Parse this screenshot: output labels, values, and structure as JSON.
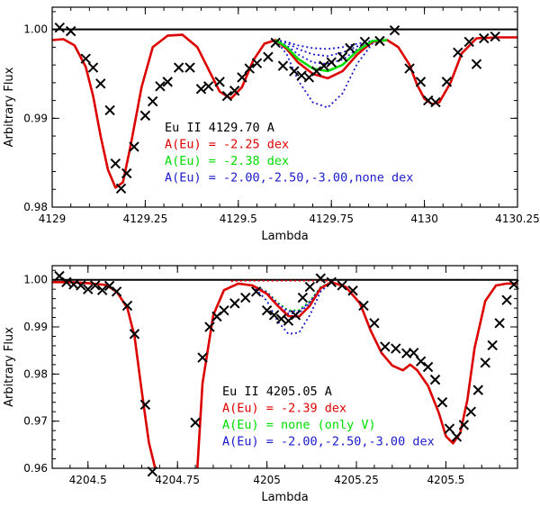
{
  "colors": {
    "red": "#dd0000",
    "green": "#00dd00",
    "blue": "#1a1acc",
    "black": "#000000"
  },
  "chart_data": [
    {
      "type": "line",
      "title": "Eu II 4129.70 A",
      "xlabel": "Lambda",
      "ylabel": "Arbitrary Flux",
      "xlim": [
        4129.0,
        4130.25
      ],
      "ylim": [
        0.98,
        1.0025
      ],
      "xticks": [
        4129,
        4129.25,
        4129.5,
        4129.75,
        4130,
        4130.25
      ],
      "xtick_labels": [
        "4129",
        "4129.25",
        "4129.5",
        "4129.75",
        "4130",
        "4130.25"
      ],
      "yticks": [
        0.98,
        0.99,
        1.0
      ],
      "ytick_labels": [
        "0.98",
        "0.99",
        "1.00"
      ],
      "continuum": 1.0,
      "annotations": [
        {
          "text": "Eu II 4129.70 A",
          "color": "black"
        },
        {
          "text": "A(Eu) = -2.25 dex",
          "color": "red"
        },
        {
          "text": "A(Eu) = -2.38 dex",
          "color": "green"
        },
        {
          "text": "A(Eu) = -2.00,-2.50,-3.00,none dex",
          "color": "blue"
        }
      ],
      "observed": {
        "name": "observed",
        "x": [
          4129.02,
          4129.05,
          4129.09,
          4129.11,
          4129.13,
          4129.155,
          4129.17,
          4129.185,
          4129.2,
          4129.22,
          4129.25,
          4129.27,
          4129.29,
          4129.31,
          4129.34,
          4129.37,
          4129.4,
          4129.42,
          4129.45,
          4129.47,
          4129.49,
          4129.51,
          4129.53,
          4129.55,
          4129.58,
          4129.6,
          4129.62,
          4129.65,
          4129.67,
          4129.69,
          4129.71,
          4129.73,
          4129.75,
          4129.78,
          4129.8,
          4129.84,
          4129.88,
          4129.92,
          4129.96,
          4129.99,
          4130.01,
          4130.03,
          4130.06,
          4130.09,
          4130.12,
          4130.14,
          4130.16,
          4130.19
        ],
        "y": [
          1.0002,
          0.9998,
          0.9967,
          0.9957,
          0.9939,
          0.9909,
          0.9849,
          0.9821,
          0.9838,
          0.9868,
          0.9903,
          0.9919,
          0.9936,
          0.9941,
          0.9957,
          0.9957,
          0.9933,
          0.9936,
          0.9941,
          0.9925,
          0.9931,
          0.9946,
          0.9956,
          0.9962,
          0.9969,
          0.9985,
          0.9959,
          0.9953,
          0.9948,
          0.9946,
          0.9953,
          0.9959,
          0.9963,
          0.9969,
          0.9979,
          0.9986,
          0.9987,
          0.9999,
          0.9956,
          0.9941,
          0.992,
          0.9918,
          0.9941,
          0.9974,
          0.9986,
          0.9961,
          0.999,
          0.9992
        ]
      },
      "series": [
        {
          "name": "A(Eu) = -2.25 dex",
          "color": "red",
          "style": "solid",
          "x": [
            4129.0,
            4129.03,
            4129.06,
            4129.09,
            4129.11,
            4129.13,
            4129.15,
            4129.17,
            4129.19,
            4129.21,
            4129.24,
            4129.27,
            4129.31,
            4129.35,
            4129.39,
            4129.42,
            4129.45,
            4129.48,
            4129.51,
            4129.54,
            4129.57,
            4129.6,
            4129.63,
            4129.66,
            4129.7,
            4129.74,
            4129.78,
            4129.82,
            4129.86,
            4129.9,
            4129.93,
            4129.96,
            4129.98,
            4130.0,
            4130.02,
            4130.04,
            4130.07,
            4130.1,
            4130.14,
            4130.2,
            4130.25
          ],
          "y": [
            0.9988,
            0.9989,
            0.9982,
            0.9958,
            0.9925,
            0.988,
            0.9842,
            0.9822,
            0.9828,
            0.9868,
            0.9935,
            0.998,
            0.9993,
            0.9994,
            0.998,
            0.9955,
            0.993,
            0.9922,
            0.9935,
            0.9965,
            0.9984,
            0.9988,
            0.9978,
            0.9963,
            0.995,
            0.9945,
            0.9953,
            0.9972,
            0.9986,
            0.9988,
            0.998,
            0.996,
            0.9938,
            0.9922,
            0.9916,
            0.9918,
            0.994,
            0.9973,
            0.999,
            0.9991,
            0.9991
          ]
        },
        {
          "name": "A(Eu) = -2.38 dex",
          "color": "green",
          "style": "solid",
          "x": [
            4129.6,
            4129.63,
            4129.66,
            4129.7,
            4129.74,
            4129.78,
            4129.82,
            4129.86,
            4129.9
          ],
          "y": [
            0.9988,
            0.998,
            0.9967,
            0.9956,
            0.9953,
            0.996,
            0.9976,
            0.9987,
            0.9988
          ]
        },
        {
          "name": "A(Eu) = -2.00 dex",
          "color": "blue",
          "style": "dotted",
          "x": [
            4129.6,
            4129.63,
            4129.66,
            4129.7,
            4129.74,
            4129.78,
            4129.82,
            4129.86,
            4129.9
          ],
          "y": [
            0.9988,
            0.9972,
            0.9943,
            0.9918,
            0.9912,
            0.9928,
            0.9962,
            0.9984,
            0.9988
          ]
        },
        {
          "name": "A(Eu) = -2.50 dex",
          "color": "blue",
          "style": "dotted",
          "x": [
            4129.6,
            4129.63,
            4129.66,
            4129.7,
            4129.74,
            4129.78,
            4129.82,
            4129.86,
            4129.9
          ],
          "y": [
            0.9988,
            0.9982,
            0.9972,
            0.9963,
            0.9961,
            0.9966,
            0.9978,
            0.9987,
            0.9988
          ]
        },
        {
          "name": "A(Eu) = -3.00 dex",
          "color": "blue",
          "style": "dotted",
          "x": [
            4129.6,
            4129.63,
            4129.66,
            4129.7,
            4129.74,
            4129.78,
            4129.82,
            4129.86,
            4129.9
          ],
          "y": [
            0.9988,
            0.9985,
            0.9978,
            0.9972,
            0.997,
            0.9974,
            0.9981,
            0.9987,
            0.9988
          ]
        },
        {
          "name": "A(Eu) = none dex",
          "color": "blue",
          "style": "dotted",
          "x": [
            4129.6,
            4129.63,
            4129.66,
            4129.7,
            4129.74,
            4129.78,
            4129.82,
            4129.86,
            4129.9
          ],
          "y": [
            0.9988,
            0.9986,
            0.9982,
            0.9979,
            0.9978,
            0.998,
            0.9984,
            0.9987,
            0.9988
          ]
        }
      ]
    },
    {
      "type": "line",
      "title": "Eu II 4205.05 A",
      "xlabel": "Lambda",
      "ylabel": "Arbitrary Flux",
      "xlim": [
        4204.4,
        4205.7
      ],
      "ylim": [
        0.96,
        1.003
      ],
      "xticks": [
        4204.5,
        4204.75,
        4205,
        4205.25,
        4205.5
      ],
      "xtick_labels": [
        "4204.5",
        "4204.75",
        "4205",
        "4205.25",
        "4205.5"
      ],
      "yticks": [
        0.96,
        0.97,
        0.98,
        0.99,
        1.0
      ],
      "ytick_labels": [
        "0.96",
        "0.97",
        "0.98",
        "0.99",
        "1.00"
      ],
      "continuum": 1.0,
      "annotations": [
        {
          "text": "Eu II 4205.05 A",
          "color": "black"
        },
        {
          "text": "A(Eu) = -2.39 dex",
          "color": "red"
        },
        {
          "text": "A(Eu) = none (only V)",
          "color": "green"
        },
        {
          "text": "A(Eu) = -2.00,-2.50,-3.00 dex",
          "color": "blue"
        }
      ],
      "observed": {
        "name": "observed",
        "x": [
          4204.42,
          4204.44,
          4204.46,
          4204.48,
          4204.5,
          4204.52,
          4204.54,
          4204.56,
          4204.58,
          4204.61,
          4204.63,
          4204.66,
          4204.68,
          4204.8,
          4204.82,
          4204.84,
          4204.86,
          4204.88,
          4204.91,
          4204.94,
          4204.97,
          4205.0,
          4205.02,
          4205.04,
          4205.06,
          4205.08,
          4205.1,
          4205.12,
          4205.15,
          4205.18,
          4205.21,
          4205.24,
          4205.27,
          4205.3,
          4205.33,
          4205.36,
          4205.39,
          4205.41,
          4205.43,
          4205.45,
          4205.47,
          4205.49,
          4205.51,
          4205.53,
          4205.55,
          4205.57,
          4205.59,
          4205.61,
          4205.63,
          4205.65,
          4205.67,
          4205.69
        ],
        "y": [
          1.0008,
          0.9995,
          0.999,
          0.9988,
          0.998,
          0.9988,
          0.9978,
          0.9987,
          0.9975,
          0.9945,
          0.9885,
          0.9735,
          0.9593,
          0.9697,
          0.9835,
          0.99,
          0.9922,
          0.9935,
          0.995,
          0.9962,
          0.9975,
          0.9935,
          0.9925,
          0.9917,
          0.9913,
          0.9925,
          0.9962,
          0.9985,
          1.0003,
          0.9995,
          0.9988,
          0.9977,
          0.9945,
          0.9908,
          0.9858,
          0.9854,
          0.9844,
          0.9845,
          0.9827,
          0.9815,
          0.9788,
          0.974,
          0.9684,
          0.9667,
          0.9692,
          0.972,
          0.9766,
          0.9824,
          0.9861,
          0.9908,
          0.9957,
          0.999
        ]
      },
      "series": [
        {
          "name": "A(Eu) = -2.39 dex",
          "color": "red",
          "style": "solid",
          "x": [
            4204.4,
            4204.45,
            4204.5,
            4204.55,
            4204.58,
            4204.61,
            4204.63,
            4204.65,
            4204.67,
            4204.69,
            4204.805,
            4204.82,
            4204.85,
            4204.88,
            4204.92,
            4204.96,
            4205.0,
            4205.03,
            4205.06,
            4205.09,
            4205.12,
            4205.15,
            4205.18,
            4205.22,
            4205.26,
            4205.29,
            4205.32,
            4205.35,
            4205.38,
            4205.4,
            4205.42,
            4205.45,
            4205.48,
            4205.5,
            4205.52,
            4205.54,
            4205.56,
            4205.58,
            4205.61,
            4205.64,
            4205.67,
            4205.7
          ],
          "y": [
            0.9995,
            0.9995,
            0.9993,
            0.9989,
            0.9975,
            0.994,
            0.988,
            0.9765,
            0.9655,
            0.9593,
            0.9593,
            0.978,
            0.9925,
            0.9978,
            0.9992,
            0.9988,
            0.997,
            0.9945,
            0.9923,
            0.9922,
            0.9945,
            0.9982,
            0.9995,
            0.9985,
            0.995,
            0.9892,
            0.9845,
            0.9818,
            0.9808,
            0.982,
            0.9808,
            0.9775,
            0.9718,
            0.9668,
            0.9653,
            0.9675,
            0.9745,
            0.9855,
            0.9955,
            0.9988,
            0.9992,
            0.9992
          ]
        },
        {
          "name": "A(Eu) = none (only V)",
          "color": "green",
          "style": "dotted",
          "x": [
            4204.96,
            4205.0,
            4205.03,
            4205.06,
            4205.09,
            4205.12,
            4205.15,
            4205.18
          ],
          "y": [
            0.9988,
            0.9975,
            0.9952,
            0.9935,
            0.9936,
            0.9955,
            0.9985,
            0.9995
          ]
        },
        {
          "name": "A(Eu) = -2.00 dex",
          "color": "blue",
          "style": "dotted",
          "x": [
            4204.96,
            4205.0,
            4205.03,
            4205.06,
            4205.09,
            4205.12,
            4205.15,
            4205.18
          ],
          "y": [
            0.9988,
            0.9955,
            0.9912,
            0.9885,
            0.9888,
            0.9925,
            0.9975,
            0.9995
          ]
        },
        {
          "name": "A(Eu) = -2.50 dex",
          "color": "blue",
          "style": "dotted",
          "x": [
            4204.96,
            4205.0,
            4205.03,
            4205.06,
            4205.09,
            4205.12,
            4205.15,
            4205.18
          ],
          "y": [
            0.9988,
            0.9972,
            0.9945,
            0.9928,
            0.993,
            0.995,
            0.9983,
            0.9995
          ]
        },
        {
          "name": "A(Eu) = -3.00 dex",
          "color": "blue",
          "style": "dotted",
          "x": [
            4204.96,
            4205.0,
            4205.03,
            4205.06,
            4205.09,
            4205.12,
            4205.15,
            4205.18
          ],
          "y": [
            0.9988,
            0.9974,
            0.995,
            0.9933,
            0.9934,
            0.9953,
            0.9984,
            0.9995
          ]
        },
        {
          "name": "A(Eu) = none dex",
          "color": "red",
          "style": "dotted",
          "x": [
            4204.9,
            4204.94,
            4204.98,
            4205.02,
            4205.06,
            4205.1,
            4205.14,
            4205.18
          ],
          "y": [
            0.9997,
            0.9998,
            0.9998,
            0.9998,
            0.9998,
            0.9998,
            0.9998,
            0.9998
          ]
        }
      ]
    }
  ]
}
